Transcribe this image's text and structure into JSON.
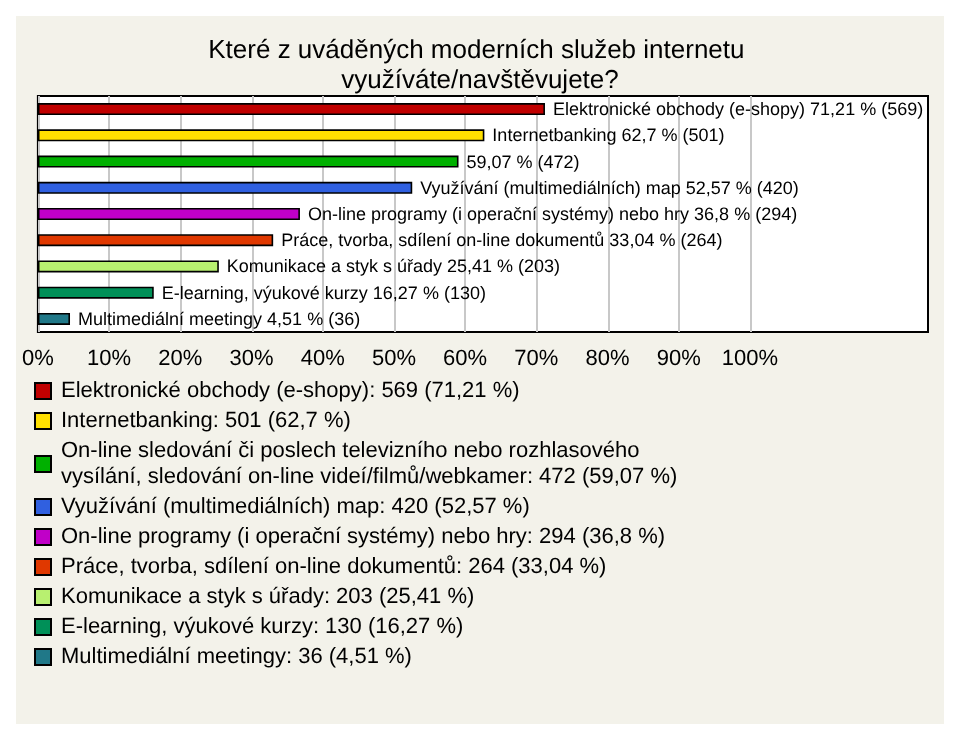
{
  "chart_data": {
    "type": "bar",
    "orientation": "horizontal",
    "stacked": true,
    "title": "Které z uváděných moderních služeb internetu využíváte/navštěvujete?",
    "categories": [
      null,
      null,
      null,
      null,
      null,
      null,
      null,
      null,
      null
    ],
    "xlim": [
      0,
      125
    ],
    "xticks": [
      {
        "value": 0,
        "label": "0%"
      },
      {
        "value": 10,
        "label": "10%"
      },
      {
        "value": 20,
        "label": "20%"
      },
      {
        "value": 30,
        "label": "30%"
      },
      {
        "value": 40,
        "label": "40%"
      },
      {
        "value": 50,
        "label": "50%"
      },
      {
        "value": 60,
        "label": "60%"
      },
      {
        "value": 70,
        "label": "70%"
      },
      {
        "value": 80,
        "label": "80%"
      },
      {
        "value": 90,
        "label": "90%"
      },
      {
        "value": 100,
        "label": "100%"
      }
    ],
    "grid": "x",
    "legend": "bottom",
    "series": [
      {
        "name": "Elektronické obchody (e-shopy): 569 (71,21 %)",
        "color": "#c00000",
        "values": [
          71.21,
          null,
          null,
          null,
          null,
          null,
          null,
          null,
          null
        ],
        "value_labels": [
          "Elektronické obchody (e-shopy) 71,21 % (569)",
          null,
          null,
          null,
          null,
          null,
          null,
          null,
          null
        ]
      },
      {
        "name": "Internetbanking: 501 (62,7 %)",
        "color": "#ffe000",
        "values": [
          null,
          62.7,
          null,
          null,
          null,
          null,
          null,
          null,
          null
        ],
        "value_labels": [
          null,
          "Internetbanking 62,7 % (501)",
          null,
          null,
          null,
          null,
          null,
          null,
          null
        ]
      },
      {
        "name": "On-line sledování či poslech televizního nebo rozhlasového vysílání, sledování on-line videí/filmů/webkamer: 472 (59,07 %)",
        "color": "#00b000",
        "values": [
          null,
          null,
          59.07,
          null,
          null,
          null,
          null,
          null,
          null
        ],
        "value_labels": [
          null,
          null,
          "59,07 % (472)",
          null,
          null,
          null,
          null,
          null,
          null
        ]
      },
      {
        "name": "Využívání (multimediálních) map: 420 (52,57 %)",
        "color": "#3060e0",
        "values": [
          null,
          null,
          null,
          52.57,
          null,
          null,
          null,
          null,
          null
        ],
        "value_labels": [
          null,
          null,
          null,
          "Využívání (multimediálních) map 52,57 % (420)",
          null,
          null,
          null,
          null,
          null
        ]
      },
      {
        "name": "On-line programy (i operační systémy) nebo hry: 294 (36,8 %)",
        "color": "#c000c8",
        "values": [
          null,
          null,
          null,
          null,
          36.8,
          null,
          null,
          null,
          null
        ],
        "value_labels": [
          null,
          null,
          null,
          null,
          "On-line programy (i operační systémy) nebo hry 36,8 % (294)",
          null,
          null,
          null,
          null
        ]
      },
      {
        "name": "Práce, tvorba, sdílení on-line dokumentů: 264 (33,04 %)",
        "color": "#e03800",
        "values": [
          null,
          null,
          null,
          null,
          null,
          33.04,
          null,
          null,
          null
        ],
        "value_labels": [
          null,
          null,
          null,
          null,
          null,
          "Práce, tvorba, sdílení on-line dokumentů 33,04 % (264)",
          null,
          null,
          null
        ]
      },
      {
        "name": "Komunikace a styk s úřady: 203 (25,41 %)",
        "color": "#b8f070",
        "values": [
          null,
          null,
          null,
          null,
          null,
          null,
          25.41,
          null,
          null
        ],
        "value_labels": [
          null,
          null,
          null,
          null,
          null,
          null,
          "Komunikace a styk s úřady 25,41 % (203)",
          null,
          null
        ]
      },
      {
        "name": "E-learning, výukové kurzy: 130 (16,27 %)",
        "color": "#009058",
        "values": [
          null,
          null,
          null,
          null,
          null,
          null,
          null,
          16.27,
          null
        ],
        "value_labels": [
          null,
          null,
          null,
          null,
          null,
          null,
          null,
          "E-learning, výukové kurzy 16,27 % (130)",
          null
        ]
      },
      {
        "name": "Multimediální meetingy: 36 (4,51 %)",
        "color": "#207888",
        "values": [
          null,
          null,
          null,
          null,
          null,
          null,
          null,
          null,
          4.51
        ],
        "value_labels": [
          null,
          null,
          null,
          null,
          null,
          null,
          null,
          null,
          "Multimediální meetingy 4,51 % (36)"
        ]
      }
    ]
  }
}
